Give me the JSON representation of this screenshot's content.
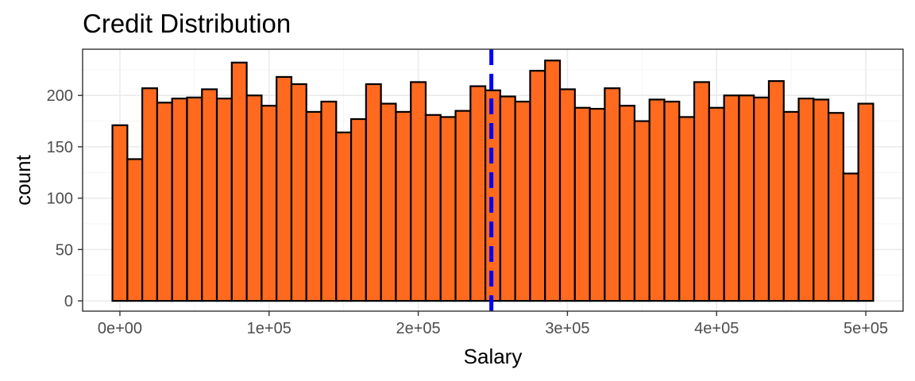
{
  "chart_data": {
    "type": "bar",
    "subtype": "histogram",
    "title": "Credit Distribution",
    "xlabel": "Salary",
    "ylabel": "count",
    "xlim": [
      -25000,
      525000
    ],
    "ylim": [
      -10,
      245
    ],
    "x_ticks": [
      0,
      100000,
      200000,
      300000,
      400000,
      500000
    ],
    "x_tick_labels": [
      "0e+00",
      "1e+05",
      "2e+05",
      "3e+05",
      "4e+05",
      "5e+05"
    ],
    "y_ticks": [
      0,
      50,
      100,
      150,
      200
    ],
    "y_tick_labels": [
      "0",
      "50",
      "100",
      "150",
      "200"
    ],
    "bin_start": -5000,
    "bin_width": 10000,
    "values": [
      171,
      138,
      207,
      193,
      197,
      198,
      206,
      197,
      232,
      200,
      190,
      218,
      211,
      184,
      194,
      164,
      177,
      211,
      192,
      184,
      213,
      181,
      179,
      185,
      209,
      205,
      199,
      194,
      224,
      234,
      206,
      188,
      187,
      207,
      190,
      175,
      196,
      194,
      179,
      213,
      188,
      200,
      200,
      198,
      214,
      184,
      197,
      196,
      183,
      124,
      192
    ],
    "reference_line": {
      "x": 249000,
      "orientation": "vertical",
      "style": "dashed"
    },
    "grid": true,
    "theme": "bw",
    "colors": {
      "bar_fill": "#ff6a1f",
      "bar_outline": "#000000",
      "reference_line": "#0000ff"
    }
  }
}
